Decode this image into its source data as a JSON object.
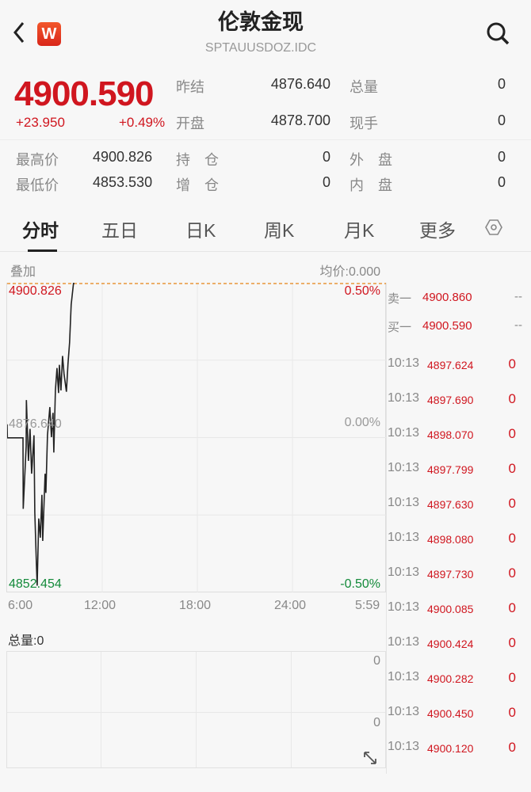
{
  "header": {
    "title": "伦敦金现",
    "code": "SPTAUUSDOZ.IDC",
    "logo_letter": "W",
    "icons": [
      "back-chevron-icon",
      "search-icon"
    ]
  },
  "quote": {
    "price": "4900.590",
    "change": "+23.950",
    "change_pct": "+0.49%"
  },
  "stats": [
    {
      "label": "昨结",
      "value": "4876.640"
    },
    {
      "label": "总量",
      "value": "0"
    },
    {
      "label": "开盘",
      "value": "4878.700"
    },
    {
      "label": "现手",
      "value": "0"
    },
    {
      "label": "最高价",
      "value": "4900.826"
    },
    {
      "label": "持　仓",
      "value": "0"
    },
    {
      "label": "外　盘",
      "value": "0"
    },
    {
      "label": "最低价",
      "value": "4853.530"
    },
    {
      "label": "增　仓",
      "value": "0"
    },
    {
      "label": "内　盘",
      "value": "0"
    }
  ],
  "tabs": [
    {
      "label": "分时",
      "active": true
    },
    {
      "label": "五日"
    },
    {
      "label": "日K"
    },
    {
      "label": "周K"
    },
    {
      "label": "月K"
    },
    {
      "label": "更多"
    }
  ],
  "chart_header": {
    "overlay": "叠加",
    "avg": "均价:0.000"
  },
  "chart_data": {
    "type": "line",
    "y_labels": {
      "high": "4900.826",
      "mid": "4876.640",
      "low": "4852.454",
      "high_pct": "0.50%",
      "mid_pct": "0.00%",
      "low_pct": "-0.50%"
    },
    "ylim": [
      4852.454,
      4900.826
    ],
    "x_ticks": [
      "6:00",
      "12:00",
      "18:00",
      "24:00",
      "5:59"
    ],
    "series": [
      {
        "points": [
          [
            "06:00",
            4878.7
          ],
          [
            "06:01",
            4876.6
          ],
          [
            "07:00",
            4876.6
          ],
          [
            "07:01",
            4865.5
          ],
          [
            "07:12",
            4875.3
          ],
          [
            "07:13",
            4882.5
          ],
          [
            "07:21",
            4873
          ],
          [
            "07:27",
            4878
          ],
          [
            "07:33",
            4871
          ],
          [
            "07:42",
            4877
          ],
          [
            "07:45",
            4865
          ],
          [
            "07:51",
            4857
          ],
          [
            "07:54",
            4853.5
          ],
          [
            "08:00",
            4864
          ],
          [
            "08:06",
            4861
          ],
          [
            "08:12",
            4867.7
          ],
          [
            "08:15",
            4860.5
          ],
          [
            "08:24",
            4871
          ],
          [
            "08:27",
            4868
          ],
          [
            "08:33",
            4877
          ],
          [
            "08:42",
            4881.4
          ],
          [
            "08:48",
            4876.7
          ],
          [
            "08:54",
            4880.5
          ],
          [
            "08:57",
            4874.3
          ],
          [
            "09:03",
            4884
          ],
          [
            "09:09",
            4887.5
          ],
          [
            "09:15",
            4883.6
          ],
          [
            "09:18",
            4888
          ],
          [
            "09:24",
            4884
          ],
          [
            "09:30",
            4889.4
          ],
          [
            "09:36",
            4886.6
          ],
          [
            "09:45",
            4883.8
          ],
          [
            "09:51",
            4888.2
          ],
          [
            "09:57",
            4891.5
          ],
          [
            "10:03",
            4897.4
          ],
          [
            "10:12",
            4900.8
          ],
          [
            "10:13",
            4900.59
          ]
        ]
      }
    ],
    "grid": true
  },
  "volume": {
    "label": "总量:0",
    "top_value": "0",
    "mid_value": "0"
  },
  "order_book": [
    {
      "label": "卖一",
      "price": "4900.860",
      "vol": "--"
    },
    {
      "label": "买一",
      "price": "4900.590",
      "vol": "--"
    }
  ],
  "ticks": [
    {
      "time": "10:13",
      "price": "4897.624",
      "vol": "0"
    },
    {
      "time": "10:13",
      "price": "4897.690",
      "vol": "0"
    },
    {
      "time": "10:13",
      "price": "4898.070",
      "vol": "0"
    },
    {
      "time": "10:13",
      "price": "4897.799",
      "vol": "0"
    },
    {
      "time": "10:13",
      "price": "4897.630",
      "vol": "0"
    },
    {
      "time": "10:13",
      "price": "4898.080",
      "vol": "0"
    },
    {
      "time": "10:13",
      "price": "4897.730",
      "vol": "0"
    },
    {
      "time": "10:13",
      "price": "4900.085",
      "vol": "0"
    },
    {
      "time": "10:13",
      "price": "4900.424",
      "vol": "0"
    },
    {
      "time": "10:13",
      "price": "4900.282",
      "vol": "0"
    },
    {
      "time": "10:13",
      "price": "4900.450",
      "vol": "0"
    },
    {
      "time": "10:13",
      "price": "4900.120",
      "vol": "0"
    }
  ],
  "colors": {
    "up": "#d0161f",
    "down": "#138a3a",
    "line": "#222222",
    "prev_close_line": "#e8963a"
  }
}
